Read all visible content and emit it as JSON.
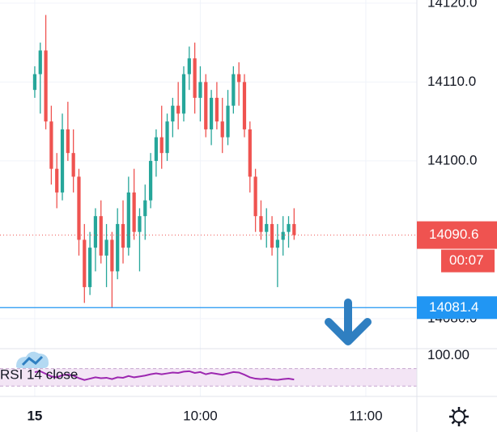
{
  "chart_data": {
    "type": "candlestick",
    "x": [
      0,
      2,
      4,
      6,
      8,
      10,
      12,
      14,
      16,
      18,
      20,
      22,
      24,
      26,
      28,
      30,
      32,
      34,
      36,
      38,
      40,
      42,
      44,
      46,
      48,
      50,
      52,
      54,
      56,
      58,
      60,
      62,
      64,
      66,
      68,
      70,
      72,
      74,
      76,
      78,
      80,
      82,
      84,
      86,
      88,
      90,
      92,
      94
    ],
    "open": [
      14109,
      14111,
      14114,
      14105,
      14099,
      14096,
      14104,
      14101,
      14098,
      14090,
      14084,
      14089,
      14093,
      14088,
      14090,
      14086,
      14092,
      14089,
      14096,
      14091,
      14093,
      14095,
      14100,
      14103,
      14101,
      14105,
      14107,
      14106,
      14111,
      14113,
      14108,
      14110,
      14104,
      14108,
      14105,
      14103,
      14107,
      14111,
      14110,
      14104,
      14098,
      14093,
      14091,
      14092,
      14089,
      14090,
      14091,
      14092
    ],
    "high": [
      14112,
      14115,
      14118.5,
      14107,
      14101,
      14106,
      14107.5,
      14104,
      14099,
      14092,
      14091,
      14094,
      14095,
      14092,
      14091,
      14094,
      14095,
      14098,
      14099,
      14094,
      14097,
      14101,
      14104,
      14107,
      14106,
      14108,
      14110,
      14112,
      14114.5,
      14115,
      14112,
      14111,
      14109,
      14110,
      14108,
      14109,
      14112,
      14112.5,
      14111,
      14105,
      14099,
      14095,
      14094,
      14093,
      14092,
      14093,
      14093,
      14094
    ],
    "low": [
      14108,
      14106,
      14104,
      14097,
      14094,
      14095,
      14100,
      14096,
      14088,
      14082,
      14083,
      14086,
      14087,
      14084,
      14081.4,
      14085,
      14087,
      14088,
      14090,
      14086,
      14090,
      14094,
      14098,
      14099,
      14100,
      14103,
      14104,
      14105,
      14109,
      14106,
      14105,
      14103,
      14102,
      14104,
      14101,
      14102,
      14106,
      14107,
      14103,
      14096,
      14091,
      14090,
      14089,
      14088,
      14084,
      14088,
      14089,
      14090
    ],
    "close": [
      14111,
      14114,
      14105,
      14099,
      14096,
      14104,
      14101,
      14098,
      14090,
      14084,
      14089,
      14093,
      14088,
      14090,
      14086,
      14092,
      14089,
      14096,
      14091,
      14093,
      14095,
      14100,
      14103,
      14101,
      14105,
      14107,
      14106,
      14111,
      14113,
      14108,
      14110,
      14104,
      14108,
      14105,
      14103,
      14107,
      14111,
      14110,
      14104,
      14098,
      14093,
      14091,
      14092,
      14089,
      14090,
      14091,
      14092,
      14090.6
    ],
    "up_color": "#26a69a",
    "down_color": "#ef5350",
    "xlim": [
      -12.6,
      138.5
    ],
    "xticks": [
      {
        "value": 0,
        "label": "15"
      },
      {
        "value": 60,
        "label": "10:00"
      },
      {
        "value": 120,
        "label": "11:00"
      }
    ],
    "ylim": [
      14076.3,
      14120.4
    ],
    "yticks": [
      {
        "value": 14080,
        "label": "14080.0"
      },
      {
        "value": 14100,
        "label": "14100.0"
      },
      {
        "value": 14110,
        "label": "14110.0"
      },
      {
        "value": 14120,
        "label": "14120.0"
      }
    ],
    "grid": true,
    "last_price": 14090.6,
    "countdown": "00:07",
    "line_price": 14081.4,
    "line_color": "#2196f3",
    "rsi": {
      "label": "RSI 14 close",
      "color": "#9c27b0",
      "ylim": [
        6.4,
        115.5
      ],
      "yticks": [
        {
          "value": 100,
          "label": "100.00"
        }
      ],
      "band": [
        30,
        70
      ],
      "values": [
        62,
        64,
        58,
        52,
        50,
        55,
        56,
        54,
        48,
        44,
        47,
        50,
        48,
        49,
        46,
        50,
        49,
        53,
        50,
        52,
        54,
        57,
        59,
        57,
        59,
        61,
        60,
        63,
        64,
        60,
        62,
        57,
        60,
        58,
        56,
        59,
        62,
        61,
        56,
        50,
        47,
        46,
        47,
        45,
        44,
        46,
        47,
        45
      ]
    }
  }
}
